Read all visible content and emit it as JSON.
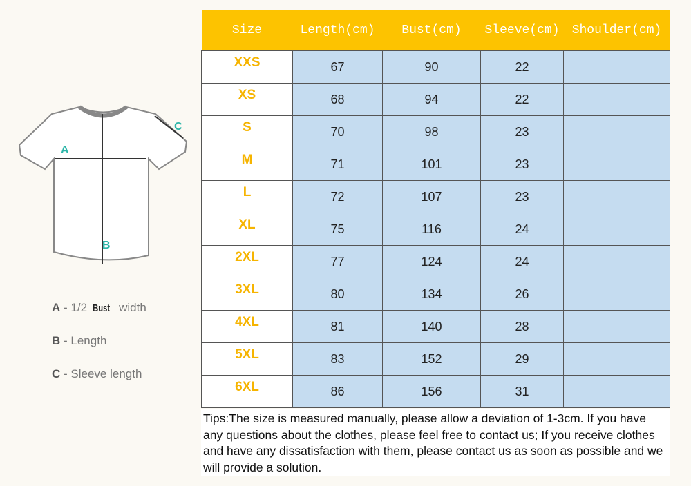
{
  "diagram": {
    "labels": [
      "A",
      "B",
      "C"
    ]
  },
  "legend": [
    {
      "key": "A",
      "text": "- 1/2",
      "highlight": "Bust",
      "tail": "width"
    },
    {
      "key": "B",
      "text": "-  Length"
    },
    {
      "key": "C",
      "text": "- Sleeve length"
    }
  ],
  "table": {
    "headers": [
      "Size",
      "Length(cm)",
      "Bust(cm)",
      "Sleeve(cm)",
      "Shoulder(cm)"
    ],
    "rows": [
      [
        "XXS",
        67,
        90,
        22
      ],
      [
        "XS",
        68,
        94,
        22
      ],
      [
        "S",
        70,
        98,
        23
      ],
      [
        "M",
        71,
        101,
        23
      ],
      [
        "L",
        72,
        107,
        23
      ],
      [
        "XL",
        75,
        116,
        24
      ],
      [
        "2XL",
        77,
        124,
        24
      ],
      [
        "3XL",
        80,
        134,
        26
      ],
      [
        "4XL",
        81,
        140,
        28
      ],
      [
        "5XL",
        83,
        152,
        29
      ],
      [
        "6XL",
        86,
        156,
        31
      ]
    ]
  },
  "tips": "Tips:The size is measured manually, please allow a deviation of 1-3cm. If you have any questions about the clothes, please feel free to contact us; If you receive clothes and have any dissatisfaction with them, please contact us as soon as possible and we will provide a solution."
}
